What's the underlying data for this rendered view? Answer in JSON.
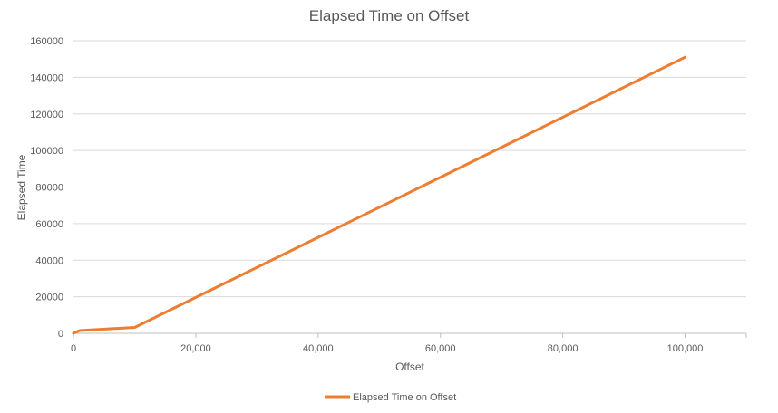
{
  "chart_data": {
    "type": "line",
    "title": "Elapsed Time on Offset",
    "xlabel": "Offset",
    "ylabel": "Elapsed Time",
    "xlim": [
      0,
      110000
    ],
    "ylim": [
      0,
      160000
    ],
    "x_ticks": [
      "0",
      "20,000",
      "40,000",
      "60,000",
      "80,000",
      "100,000"
    ],
    "x_tick_values": [
      0,
      20000,
      40000,
      60000,
      80000,
      100000
    ],
    "y_ticks": [
      "0",
      "20000",
      "40000",
      "60000",
      "80000",
      "100000",
      "120000",
      "140000",
      "160000"
    ],
    "y_tick_values": [
      0,
      20000,
      40000,
      60000,
      80000,
      100000,
      120000,
      140000,
      160000
    ],
    "grid": true,
    "legend": "bottom",
    "series": [
      {
        "name": "Elapsed Time on Offset",
        "color": "#ed7d31",
        "x": [
          0,
          1000,
          10000,
          100000
        ],
        "y": [
          0,
          1500,
          3200,
          151000
        ]
      }
    ]
  }
}
